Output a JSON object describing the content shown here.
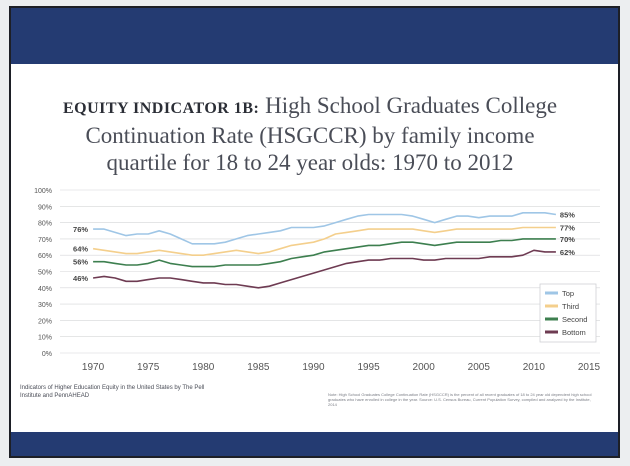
{
  "page": {
    "kicker": "EQUITY INDICATOR 1B:",
    "title_line1": "High School Graduates College",
    "title_line2": "Continuation Rate (HSGCCR) by family income",
    "title_line3": "quartile for 18 to 24 year olds: 1970 to 2012",
    "source_left": "Indicators of Higher Education Equity in the United States by The Pell Institute and PennAHEAD",
    "note_right": "Note: High School Graduates College Continuation Rate (HSGCCR) is the percent of all recent graduates of 18 to 24 year old dependent high school graduates who have enrolled in college in the year. Source: U.S. Census Bureau, Current Population Survey, compiled and analyzed by the Institute, 2014"
  },
  "colors": {
    "band": "#243b72",
    "Top": "#9fc6e6",
    "Third": "#f4cf8c",
    "Second": "#3d7f4f",
    "Bottom": "#6e3b52",
    "grid": "#d5d6d8"
  },
  "chart_data": {
    "type": "line",
    "title": "High School Graduates College Continuation Rate (HSGCCR) by family income quartile for 18 to 24 year olds: 1970 to 2012",
    "xlabel": "",
    "ylabel": "",
    "xlim": [
      1967,
      2016
    ],
    "ylim": [
      0,
      100
    ],
    "xticks": [
      1970,
      1975,
      1980,
      1985,
      1990,
      1995,
      2000,
      2005,
      2010,
      2015
    ],
    "yticks": [
      0,
      10,
      20,
      30,
      40,
      50,
      60,
      70,
      80,
      90,
      100
    ],
    "ytick_suffix": "%",
    "grid": true,
    "legend_position": "bottom-right",
    "x": [
      1970,
      1971,
      1972,
      1973,
      1974,
      1975,
      1976,
      1977,
      1978,
      1979,
      1980,
      1981,
      1982,
      1983,
      1984,
      1985,
      1986,
      1987,
      1988,
      1989,
      1990,
      1991,
      1992,
      1993,
      1994,
      1995,
      1996,
      1997,
      1998,
      1999,
      2000,
      2001,
      2002,
      2003,
      2004,
      2005,
      2006,
      2007,
      2008,
      2009,
      2010,
      2011,
      2012
    ],
    "series": [
      {
        "name": "Top",
        "values": [
          76,
          76,
          74,
          72,
          73,
          73,
          75,
          73,
          70,
          67,
          67,
          67,
          68,
          70,
          72,
          73,
          74,
          75,
          77,
          77,
          77,
          78,
          80,
          82,
          84,
          85,
          85,
          85,
          85,
          84,
          82,
          80,
          82,
          84,
          84,
          83,
          84,
          84,
          84,
          86,
          86,
          86,
          85
        ]
      },
      {
        "name": "Third",
        "values": [
          64,
          63,
          62,
          61,
          61,
          62,
          63,
          62,
          61,
          60,
          60,
          61,
          62,
          63,
          62,
          61,
          62,
          64,
          66,
          67,
          68,
          70,
          73,
          74,
          75,
          76,
          76,
          76,
          76,
          76,
          75,
          74,
          75,
          76,
          76,
          76,
          76,
          76,
          76,
          77,
          77,
          77,
          77
        ]
      },
      {
        "name": "Second",
        "values": [
          56,
          56,
          55,
          54,
          54,
          55,
          57,
          55,
          54,
          53,
          53,
          53,
          54,
          54,
          54,
          54,
          55,
          56,
          58,
          59,
          60,
          62,
          63,
          64,
          65,
          66,
          66,
          67,
          68,
          68,
          67,
          66,
          67,
          68,
          68,
          68,
          68,
          69,
          69,
          70,
          70,
          70,
          70
        ]
      },
      {
        "name": "Bottom",
        "values": [
          46,
          47,
          46,
          44,
          44,
          45,
          46,
          46,
          45,
          44,
          43,
          43,
          42,
          42,
          41,
          40,
          41,
          43,
          45,
          47,
          49,
          51,
          53,
          55,
          56,
          57,
          57,
          58,
          58,
          58,
          57,
          57,
          58,
          58,
          58,
          58,
          59,
          59,
          59,
          60,
          63,
          62,
          62
        ]
      }
    ],
    "start_labels": [
      {
        "series": "Top",
        "text": "76%",
        "value": 76
      },
      {
        "series": "Third",
        "text": "64%",
        "value": 64
      },
      {
        "series": "Second",
        "text": "56%",
        "value": 56
      },
      {
        "series": "Bottom",
        "text": "46%",
        "value": 46
      }
    ],
    "end_labels": [
      {
        "series": "Top",
        "text": "85%",
        "value": 85
      },
      {
        "series": "Third",
        "text": "77%",
        "value": 77
      },
      {
        "series": "Second",
        "text": "70%",
        "value": 70
      },
      {
        "series": "Bottom",
        "text": "62%",
        "value": 62
      }
    ]
  }
}
